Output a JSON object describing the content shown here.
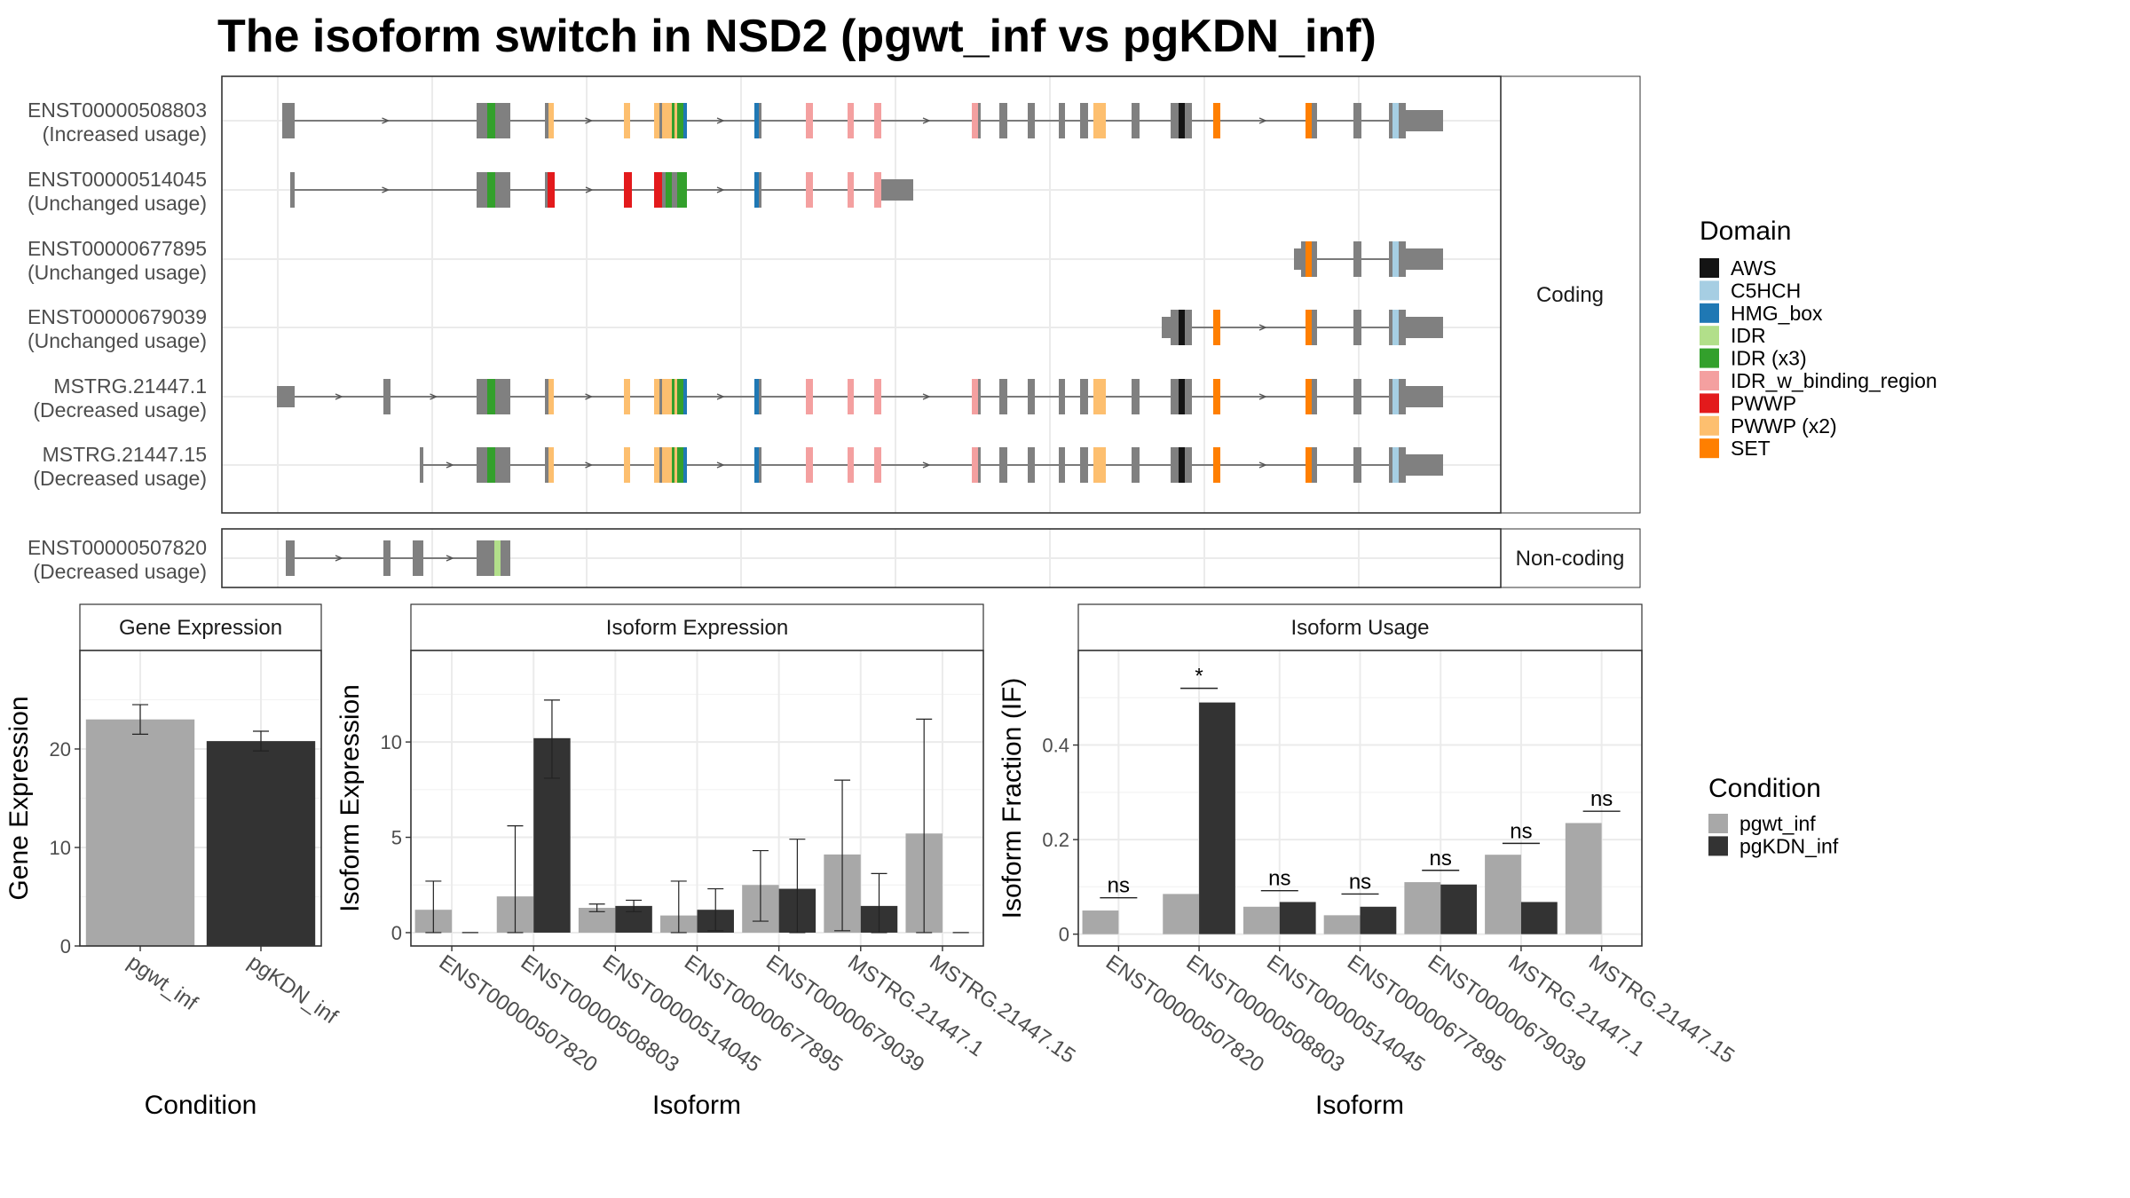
{
  "title": "The isoform switch in NSD2 (pgwt_inf vs pgKDN_inf)",
  "colors": {
    "AWS": "#141414",
    "C5HCH": "#a6cee3",
    "HMG_box": "#1f78b4",
    "IDR": "#b2df8a",
    "IDR (x3)": "#33a02c",
    "IDR_w_binding_region": "#f4a0a0",
    "PWWP": "#e31a1c",
    "PWWP (x2)": "#fdbf6f",
    "SET": "#ff7f00",
    "exon": "#808080",
    "pgwt_inf": "#a8a8a8",
    "pgKDN_inf": "#333333"
  },
  "structure": {
    "facets": [
      "Coding",
      "Non-coding"
    ],
    "isoforms": [
      {
        "id": "ENST00000508803",
        "status": "(Increased usage)",
        "coding": true
      },
      {
        "id": "ENST00000514045",
        "status": "(Unchanged usage)",
        "coding": true
      },
      {
        "id": "ENST00000677895",
        "status": "(Unchanged usage)",
        "coding": true
      },
      {
        "id": "ENST00000679039",
        "status": "(Unchanged usage)",
        "coding": true
      },
      {
        "id": "MSTRG.21447.1",
        "status": "(Decreased usage)",
        "coding": true
      },
      {
        "id": "MSTRG.21447.15",
        "status": "(Decreased usage)",
        "coding": true
      },
      {
        "id": "ENST00000507820",
        "status": "(Decreased usage)",
        "coding": false
      }
    ]
  },
  "legends": {
    "domain_title": "Domain",
    "domains": [
      "AWS",
      "C5HCH",
      "HMG_box",
      "IDR",
      "IDR (x3)",
      "IDR_w_binding_region",
      "PWWP",
      "PWWP (x2)",
      "SET"
    ],
    "condition_title": "Condition",
    "conditions": [
      "pgwt_inf",
      "pgKDN_inf"
    ]
  },
  "chart_data": [
    {
      "type": "bar",
      "title": "Gene Expression",
      "xlabel": "Condition",
      "ylabel": "Gene Expression",
      "ylim": [
        0,
        30
      ],
      "yticks": [
        0,
        10,
        20
      ],
      "categories": [
        "pgwt_inf",
        "pgKDN_inf"
      ],
      "values": [
        23.0,
        20.8
      ],
      "errors": [
        [
          21.5,
          24.5
        ],
        [
          19.8,
          21.8
        ]
      ]
    },
    {
      "type": "bar",
      "title": "Isoform Expression",
      "xlabel": "Isoform",
      "ylabel": "Isoform Expression",
      "ylim": [
        -0.7,
        14.8
      ],
      "yticks": [
        0,
        5,
        10
      ],
      "categories": [
        "ENST00000507820",
        "ENST00000508803",
        "ENST00000514045",
        "ENST00000677895",
        "ENST00000679039",
        "MSTRG.21447.1",
        "MSTRG.21447.15"
      ],
      "series": [
        {
          "name": "pgwt_inf",
          "values": [
            1.2,
            1.9,
            1.3,
            0.9,
            2.5,
            4.1,
            5.2
          ],
          "errors": [
            [
              0,
              2.7
            ],
            [
              0,
              5.6
            ],
            [
              1.1,
              1.5
            ],
            [
              0,
              2.7
            ],
            [
              0.6,
              4.3
            ],
            [
              0.1,
              8.0
            ],
            [
              0,
              11.2
            ]
          ]
        },
        {
          "name": "pgKDN_inf",
          "values": [
            0,
            10.2,
            1.4,
            1.2,
            2.3,
            1.4,
            0
          ],
          "errors": [
            [
              0,
              0
            ],
            [
              8.1,
              12.2
            ],
            [
              1.1,
              1.7
            ],
            [
              0.1,
              2.3
            ],
            [
              0,
              4.9
            ],
            [
              0,
              3.1
            ],
            [
              0,
              0
            ]
          ]
        }
      ]
    },
    {
      "type": "bar",
      "title": "Isoform Usage",
      "xlabel": "Isoform",
      "ylabel": "Isoform Fraction (IF)",
      "ylim": [
        -0.025,
        0.6
      ],
      "yticks": [
        0.0,
        0.2,
        0.4
      ],
      "categories": [
        "ENST00000507820",
        "ENST00000508803",
        "ENST00000514045",
        "ENST00000677895",
        "ENST00000679039",
        "MSTRG.21447.1",
        "MSTRG.21447.15"
      ],
      "series": [
        {
          "name": "pgwt_inf",
          "values": [
            0.05,
            0.085,
            0.058,
            0.04,
            0.11,
            0.168,
            0.235
          ]
        },
        {
          "name": "pgKDN_inf",
          "values": [
            0,
            0.49,
            0.068,
            0.058,
            0.105,
            0.068,
            0
          ]
        }
      ],
      "significance": [
        "ns",
        "*",
        "ns",
        "ns",
        "ns",
        "ns",
        "ns"
      ],
      "sig_line_y": [
        0.077,
        0.52,
        0.092,
        0.085,
        0.135,
        0.192,
        0.26
      ]
    }
  ]
}
